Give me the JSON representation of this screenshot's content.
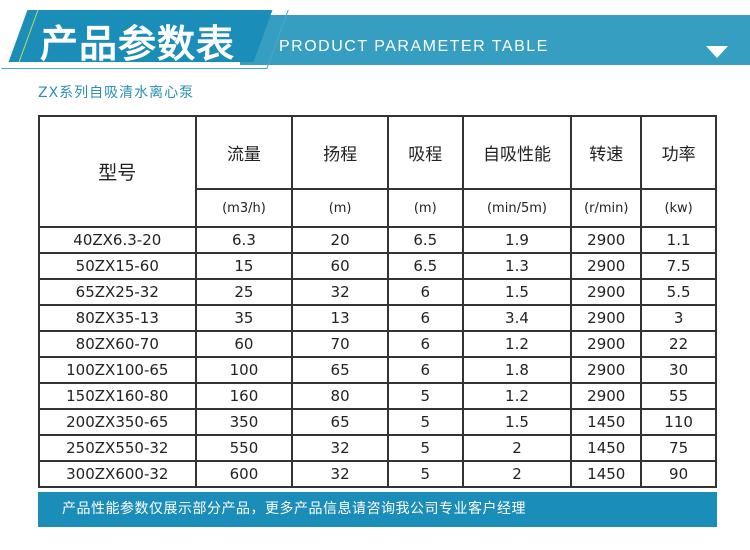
{
  "banner": {
    "title": "产品参数表",
    "subtitle_en": "PRODUCT PARAMETER TABLE",
    "arrow_icon": "triangle-down-icon"
  },
  "series_title": "ZX系列自吸清水离心泵",
  "table": {
    "model_header": "型号",
    "headers": [
      "流量",
      "扬程",
      "吸程",
      "自吸性能",
      "转速",
      "功率"
    ],
    "units": [
      "(m3/h)",
      "(m)",
      "(m)",
      "(min/5m)",
      "(r/min)",
      "(kw)"
    ],
    "rows": [
      [
        "40ZX6.3-20",
        "6.3",
        "20",
        "6.5",
        "1.9",
        "2900",
        "1.1"
      ],
      [
        "50ZX15-60",
        "15",
        "60",
        "6.5",
        "1.3",
        "2900",
        "7.5"
      ],
      [
        "65ZX25-32",
        "25",
        "32",
        "6",
        "1.5",
        "2900",
        "5.5"
      ],
      [
        "80ZX35-13",
        "35",
        "13",
        "6",
        "3.4",
        "2900",
        "3"
      ],
      [
        "80ZX60-70",
        "60",
        "70",
        "6",
        "1.2",
        "2900",
        "22"
      ],
      [
        "100ZX100-65",
        "100",
        "65",
        "6",
        "1.8",
        "2900",
        "30"
      ],
      [
        "150ZX160-80",
        "160",
        "80",
        "5",
        "1.2",
        "2900",
        "55"
      ],
      [
        "200ZX350-65",
        "350",
        "65",
        "5",
        "1.5",
        "1450",
        "110"
      ],
      [
        "250ZX550-32",
        "550",
        "32",
        "5",
        "2",
        "1450",
        "75"
      ],
      [
        "300ZX600-32",
        "600",
        "32",
        "5",
        "2",
        "1450",
        "90"
      ]
    ]
  },
  "footer": "产品性能参数仅展示部分产品，更多产品信息请咨询我公司专业客户经理",
  "colors": {
    "banner": "#369ec1",
    "banner_dark": "#1a8db8",
    "subtitle": "#2a8fb5"
  }
}
